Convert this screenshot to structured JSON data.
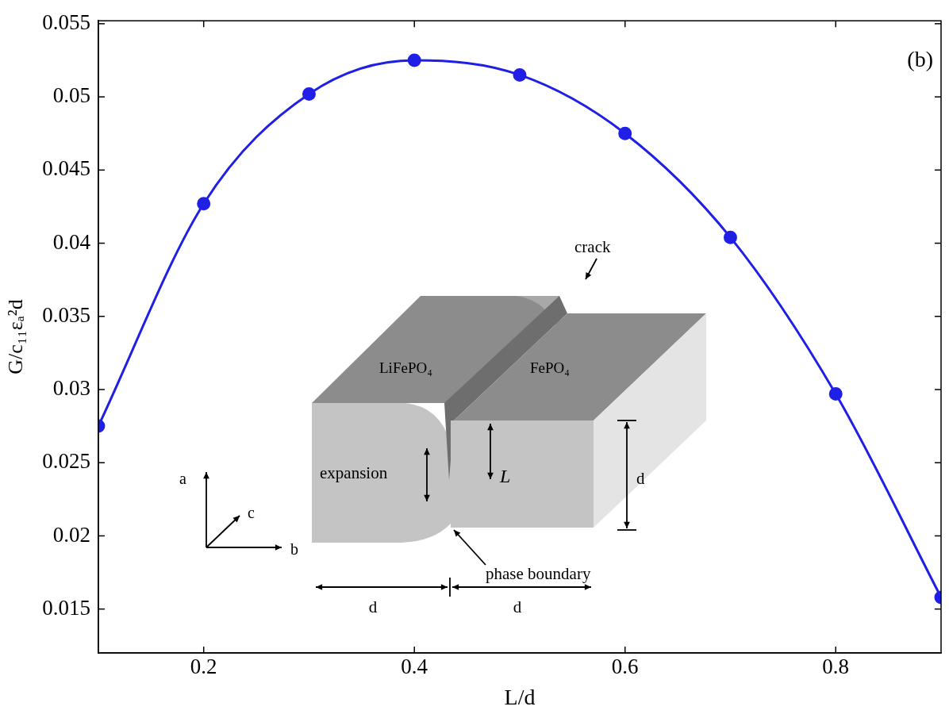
{
  "chart_data": {
    "type": "line",
    "panel_label": "(b)",
    "x_label": "L/d",
    "y_label": "G/c₁₁εₐ²d",
    "x": [
      0.1,
      0.2,
      0.3,
      0.4,
      0.5,
      0.6,
      0.7,
      0.8,
      0.9
    ],
    "values": [
      0.0275,
      0.0427,
      0.0502,
      0.0525,
      0.0515,
      0.0475,
      0.0404,
      0.0297,
      0.0158
    ],
    "color": "#1f1fe6",
    "marker": "circle",
    "line_style": "solid",
    "grid": false,
    "xlim": [
      0.1,
      0.9
    ],
    "xticks": [
      0.2,
      0.4,
      0.6,
      0.8
    ],
    "ylim": [
      0.012,
      0.0552
    ],
    "yticks": [
      0.015,
      0.02,
      0.025,
      0.03,
      0.035,
      0.04,
      0.045,
      0.05,
      0.055
    ],
    "inset": {
      "left_phase": "LiFePO₄",
      "right_phase": "FePO₄",
      "crack": "crack",
      "expansion": "expansion",
      "crack_depth": "L",
      "height": "d",
      "boundary": "phase boundary",
      "left_width": "d",
      "right_width": "d",
      "axis_a": "a",
      "axis_b": "b",
      "axis_c": "c"
    }
  }
}
